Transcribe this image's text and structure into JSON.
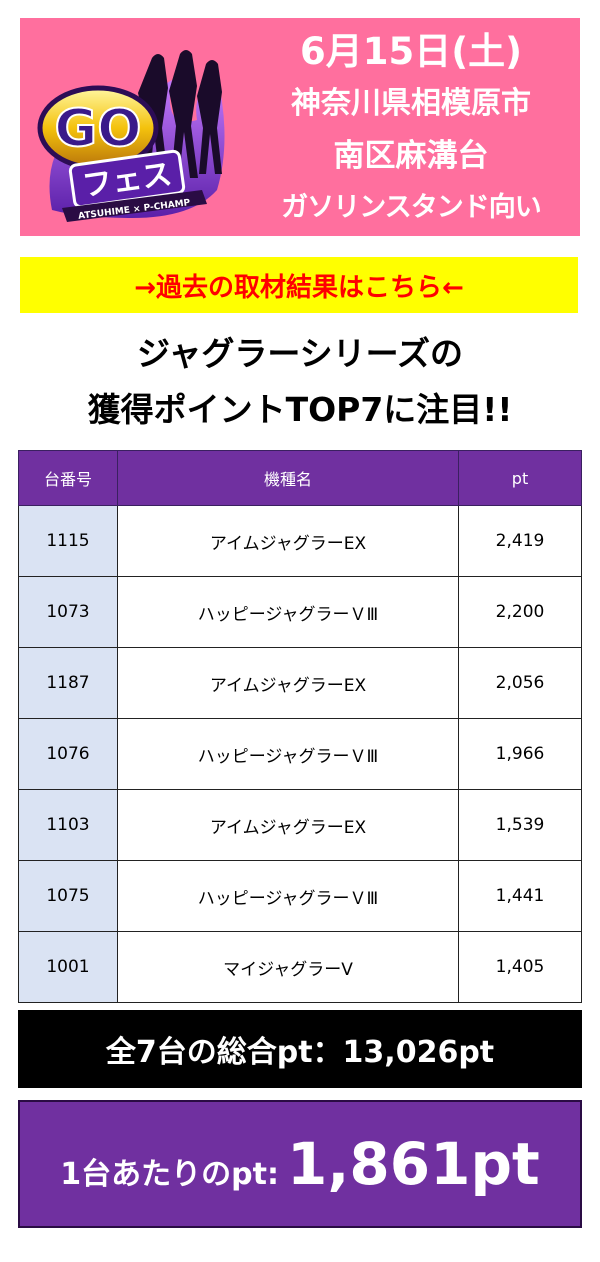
{
  "banner": {
    "date": "6月15日(土)",
    "line2": "神奈川県相模原市",
    "line3": "南区麻溝台",
    "line4": "ガソリンスタンド向い",
    "logo_text": "GOフェス",
    "logo_subtext": "ATSUHIME × P-CHAMP"
  },
  "link": {
    "label": "→過去の取材結果はこちら←"
  },
  "headline": {
    "line1": "ジャグラーシリーズの",
    "line2": "獲得ポイントTOP7に注目!!"
  },
  "table": {
    "headers": {
      "number": "台番号",
      "model": "機種名",
      "pt": "pt"
    },
    "rows": [
      {
        "number": "1115",
        "model": "アイムジャグラーEX",
        "pt": "2,419"
      },
      {
        "number": "1073",
        "model": "ハッピージャグラーＶⅢ",
        "pt": "2,200"
      },
      {
        "number": "1187",
        "model": "アイムジャグラーEX",
        "pt": "2,056"
      },
      {
        "number": "1076",
        "model": "ハッピージャグラーＶⅢ",
        "pt": "1,966"
      },
      {
        "number": "1103",
        "model": "アイムジャグラーEX",
        "pt": "1,539"
      },
      {
        "number": "1075",
        "model": "ハッピージャグラーＶⅢ",
        "pt": "1,441"
      },
      {
        "number": "1001",
        "model": "マイジャグラーV",
        "pt": "1,405"
      }
    ]
  },
  "total": {
    "label": "全7台の総合pt：13,026pt"
  },
  "average": {
    "label": "1台あたりのpt:",
    "value": "1,861pt"
  },
  "colors": {
    "banner": "#ff6f9e",
    "link_bar": "#ffff00",
    "link_text": "#ff0000",
    "purple": "#7030a0",
    "number_cell": "#dae3f3"
  }
}
